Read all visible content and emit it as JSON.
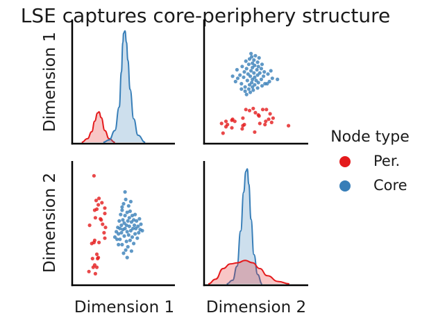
{
  "figure": {
    "title": "LSE captures core-periphery structure"
  },
  "chart_data": {
    "type": "pairplot",
    "title": "LSE captures core-periphery structure",
    "variables": [
      "Dimension 1",
      "Dimension 2"
    ],
    "legend": {
      "title": "Node type",
      "position": "right",
      "entries": [
        {
          "label": "Per.",
          "color": "#e41a1c"
        },
        {
          "label": "Core",
          "color": "#377eb8"
        }
      ]
    },
    "grid": false,
    "diagonal": "kde",
    "off_diagonal": "scatter",
    "groups": {
      "Per.": {
        "color": "#e41a1c",
        "points": [
          [
            0.02,
            0.05
          ],
          [
            0.08,
            0.09
          ],
          [
            0.11,
            0.03
          ],
          [
            0.1,
            0.11
          ],
          [
            0.07,
            0.17
          ],
          [
            0.13,
            0.09
          ],
          [
            0.14,
            0.17
          ],
          [
            0.15,
            0.18
          ],
          [
            0.13,
            0.21
          ],
          [
            0.06,
            0.31
          ],
          [
            0.09,
            0.32
          ],
          [
            0.1,
            0.34
          ],
          [
            0.16,
            0.32
          ],
          [
            0.24,
            0.36
          ],
          [
            0.23,
            0.41
          ],
          [
            0.25,
            0.46
          ],
          [
            0.21,
            0.49
          ],
          [
            0.19,
            0.53
          ],
          [
            0.24,
            0.59
          ],
          [
            0.18,
            0.54
          ],
          [
            0.11,
            0.55
          ],
          [
            0.1,
            0.62
          ],
          [
            0.13,
            0.63
          ],
          [
            0.15,
            0.67
          ],
          [
            0.12,
            0.71
          ],
          [
            0.24,
            0.64
          ],
          [
            0.2,
            0.69
          ],
          [
            0.16,
            0.73
          ],
          [
            0.03,
            0.48
          ],
          [
            0.09,
            0.94
          ]
        ],
        "kde_dim1": [
          [
            -0.08,
            0.0
          ],
          [
            0.0,
            0.03
          ],
          [
            0.06,
            0.09
          ],
          [
            0.1,
            0.18
          ],
          [
            0.14,
            0.25
          ],
          [
            0.16,
            0.26
          ],
          [
            0.19,
            0.21
          ],
          [
            0.24,
            0.1
          ],
          [
            0.3,
            0.03
          ],
          [
            0.38,
            0.0
          ]
        ],
        "kde_dim2": [
          [
            -0.15,
            0.0
          ],
          [
            -0.05,
            0.04
          ],
          [
            0.05,
            0.13
          ],
          [
            0.15,
            0.17
          ],
          [
            0.25,
            0.18
          ],
          [
            0.35,
            0.2
          ],
          [
            0.45,
            0.18
          ],
          [
            0.55,
            0.13
          ],
          [
            0.65,
            0.07
          ],
          [
            0.8,
            0.02
          ],
          [
            0.95,
            0.0
          ]
        ]
      },
      "Core": {
        "color": "#377eb8",
        "points": [
          [
            0.38,
            0.37
          ],
          [
            0.4,
            0.42
          ],
          [
            0.41,
            0.35
          ],
          [
            0.42,
            0.46
          ],
          [
            0.43,
            0.4
          ],
          [
            0.44,
            0.52
          ],
          [
            0.45,
            0.45
          ],
          [
            0.45,
            0.35
          ],
          [
            0.46,
            0.58
          ],
          [
            0.47,
            0.48
          ],
          [
            0.47,
            0.41
          ],
          [
            0.48,
            0.62
          ],
          [
            0.48,
            0.3
          ],
          [
            0.49,
            0.53
          ],
          [
            0.49,
            0.44
          ],
          [
            0.5,
            0.22
          ],
          [
            0.5,
            0.68
          ],
          [
            0.51,
            0.5
          ],
          [
            0.51,
            0.38
          ],
          [
            0.52,
            0.57
          ],
          [
            0.52,
            0.45
          ],
          [
            0.53,
            0.25
          ],
          [
            0.53,
            0.72
          ],
          [
            0.54,
            0.48
          ],
          [
            0.54,
            0.33
          ],
          [
            0.55,
            0.6
          ],
          [
            0.55,
            0.42
          ],
          [
            0.56,
            0.52
          ],
          [
            0.56,
            0.28
          ],
          [
            0.57,
            0.66
          ],
          [
            0.57,
            0.39
          ],
          [
            0.58,
            0.47
          ],
          [
            0.58,
            0.55
          ],
          [
            0.59,
            0.34
          ],
          [
            0.59,
            0.61
          ],
          [
            0.6,
            0.43
          ],
          [
            0.61,
            0.51
          ],
          [
            0.61,
            0.24
          ],
          [
            0.62,
            0.57
          ],
          [
            0.62,
            0.37
          ],
          [
            0.63,
            0.45
          ],
          [
            0.64,
            0.53
          ],
          [
            0.64,
            0.31
          ],
          [
            0.65,
            0.48
          ],
          [
            0.66,
            0.4
          ],
          [
            0.66,
            0.58
          ],
          [
            0.67,
            0.45
          ],
          [
            0.68,
            0.52
          ],
          [
            0.69,
            0.36
          ],
          [
            0.7,
            0.47
          ],
          [
            0.71,
            0.41
          ],
          [
            0.72,
            0.54
          ],
          [
            0.73,
            0.44
          ],
          [
            0.74,
            0.49
          ],
          [
            0.76,
            0.43
          ],
          [
            0.52,
            0.79
          ],
          [
            0.55,
            0.18
          ],
          [
            0.48,
            0.65
          ],
          [
            0.6,
            0.7
          ],
          [
            0.43,
            0.3
          ]
        ],
        "kde_dim1": [
          [
            0.22,
            0.0
          ],
          [
            0.3,
            0.02
          ],
          [
            0.38,
            0.1
          ],
          [
            0.44,
            0.3
          ],
          [
            0.47,
            0.6
          ],
          [
            0.49,
            0.85
          ],
          [
            0.5,
            0.93
          ],
          [
            0.52,
            0.95
          ],
          [
            0.54,
            0.85
          ],
          [
            0.56,
            0.7
          ],
          [
            0.59,
            0.45
          ],
          [
            0.64,
            0.2
          ],
          [
            0.7,
            0.06
          ],
          [
            0.8,
            0.0
          ]
        ],
        "kde_dim2": [
          [
            0.1,
            0.0
          ],
          [
            0.18,
            0.03
          ],
          [
            0.24,
            0.15
          ],
          [
            0.29,
            0.45
          ],
          [
            0.33,
            0.78
          ],
          [
            0.36,
            0.96
          ],
          [
            0.38,
            0.98
          ],
          [
            0.4,
            0.85
          ],
          [
            0.43,
            0.55
          ],
          [
            0.47,
            0.25
          ],
          [
            0.52,
            0.08
          ],
          [
            0.58,
            0.0
          ]
        ]
      }
    }
  }
}
